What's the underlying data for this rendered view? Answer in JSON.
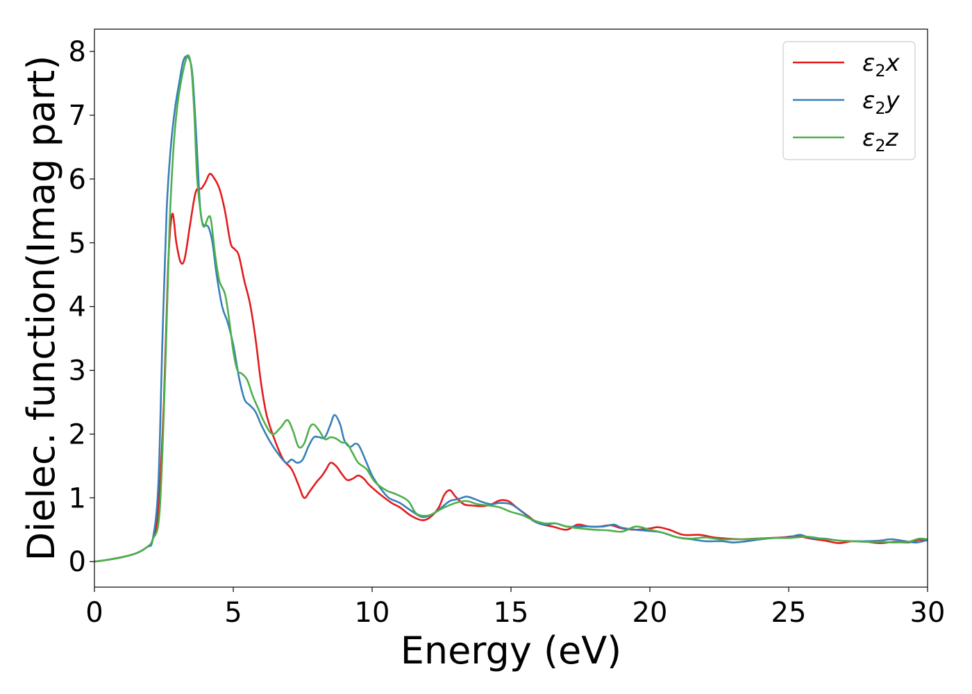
{
  "chart_data": {
    "type": "line",
    "xlabel": "Energy (eV)",
    "ylabel": "Dielec. function(Imag part)",
    "xlim": [
      0,
      30
    ],
    "ylim": [
      -0.4,
      8.35
    ],
    "xticks": [
      0,
      5,
      10,
      15,
      20,
      25,
      30
    ],
    "yticks": [
      0,
      1,
      2,
      3,
      4,
      5,
      6,
      7,
      8
    ],
    "grid": false,
    "legend_position": "top-right",
    "series": [
      {
        "name": "ε2x",
        "legend_symbol": "ε",
        "legend_sub": "2",
        "legend_suffix": "x",
        "color": "#e41a1c",
        "points": [
          [
            0,
            0
          ],
          [
            0.5,
            0.03
          ],
          [
            1,
            0.07
          ],
          [
            1.5,
            0.13
          ],
          [
            1.9,
            0.23
          ],
          [
            2.1,
            0.35
          ],
          [
            2.3,
            0.8
          ],
          [
            2.5,
            2.5
          ],
          [
            2.65,
            4.6
          ],
          [
            2.8,
            5.45
          ],
          [
            2.95,
            5.0
          ],
          [
            3.1,
            4.7
          ],
          [
            3.25,
            4.75
          ],
          [
            3.45,
            5.3
          ],
          [
            3.65,
            5.8
          ],
          [
            3.85,
            5.85
          ],
          [
            4.0,
            5.95
          ],
          [
            4.15,
            6.08
          ],
          [
            4.3,
            6.02
          ],
          [
            4.5,
            5.85
          ],
          [
            4.7,
            5.5
          ],
          [
            4.9,
            5.0
          ],
          [
            5.05,
            4.9
          ],
          [
            5.2,
            4.8
          ],
          [
            5.4,
            4.4
          ],
          [
            5.6,
            4.05
          ],
          [
            5.8,
            3.5
          ],
          [
            6.0,
            2.8
          ],
          [
            6.2,
            2.3
          ],
          [
            6.5,
            1.9
          ],
          [
            6.8,
            1.6
          ],
          [
            7.1,
            1.45
          ],
          [
            7.35,
            1.2
          ],
          [
            7.55,
            1.0
          ],
          [
            7.75,
            1.1
          ],
          [
            8.0,
            1.25
          ],
          [
            8.2,
            1.35
          ],
          [
            8.35,
            1.45
          ],
          [
            8.5,
            1.55
          ],
          [
            8.7,
            1.5
          ],
          [
            8.9,
            1.38
          ],
          [
            9.1,
            1.28
          ],
          [
            9.3,
            1.3
          ],
          [
            9.5,
            1.35
          ],
          [
            9.7,
            1.3
          ],
          [
            9.9,
            1.2
          ],
          [
            10.3,
            1.05
          ],
          [
            10.7,
            0.92
          ],
          [
            11.0,
            0.85
          ],
          [
            11.4,
            0.72
          ],
          [
            11.8,
            0.65
          ],
          [
            12.1,
            0.7
          ],
          [
            12.4,
            0.85
          ],
          [
            12.6,
            1.05
          ],
          [
            12.8,
            1.12
          ],
          [
            13.0,
            1.02
          ],
          [
            13.3,
            0.9
          ],
          [
            13.6,
            0.88
          ],
          [
            14.0,
            0.87
          ],
          [
            14.3,
            0.9
          ],
          [
            14.6,
            0.96
          ],
          [
            14.9,
            0.95
          ],
          [
            15.2,
            0.85
          ],
          [
            15.6,
            0.72
          ],
          [
            16.0,
            0.6
          ],
          [
            16.5,
            0.55
          ],
          [
            17.0,
            0.5
          ],
          [
            17.4,
            0.58
          ],
          [
            17.8,
            0.55
          ],
          [
            18.2,
            0.55
          ],
          [
            18.6,
            0.57
          ],
          [
            19.0,
            0.52
          ],
          [
            19.5,
            0.5
          ],
          [
            20.0,
            0.52
          ],
          [
            20.3,
            0.54
          ],
          [
            20.7,
            0.5
          ],
          [
            21.2,
            0.42
          ],
          [
            21.8,
            0.42
          ],
          [
            22.3,
            0.38
          ],
          [
            22.8,
            0.36
          ],
          [
            23.3,
            0.35
          ],
          [
            23.8,
            0.36
          ],
          [
            24.3,
            0.37
          ],
          [
            24.8,
            0.38
          ],
          [
            25.3,
            0.4
          ],
          [
            25.8,
            0.36
          ],
          [
            26.3,
            0.33
          ],
          [
            26.8,
            0.29
          ],
          [
            27.3,
            0.32
          ],
          [
            27.8,
            0.31
          ],
          [
            28.3,
            0.29
          ],
          [
            28.8,
            0.31
          ],
          [
            29.3,
            0.3
          ],
          [
            29.7,
            0.34
          ],
          [
            30,
            0.33
          ]
        ]
      },
      {
        "name": "ε2y",
        "legend_symbol": "ε",
        "legend_sub": "2",
        "legend_suffix": "y",
        "color": "#377eb8",
        "points": [
          [
            0,
            0
          ],
          [
            0.5,
            0.03
          ],
          [
            1,
            0.07
          ],
          [
            1.5,
            0.13
          ],
          [
            1.9,
            0.23
          ],
          [
            2.1,
            0.35
          ],
          [
            2.3,
            1.2
          ],
          [
            2.45,
            3.5
          ],
          [
            2.6,
            5.5
          ],
          [
            2.75,
            6.5
          ],
          [
            2.9,
            7.1
          ],
          [
            3.05,
            7.5
          ],
          [
            3.2,
            7.85
          ],
          [
            3.35,
            7.92
          ],
          [
            3.5,
            7.75
          ],
          [
            3.6,
            7.2
          ],
          [
            3.7,
            6.4
          ],
          [
            3.8,
            5.6
          ],
          [
            3.9,
            5.3
          ],
          [
            4.1,
            5.25
          ],
          [
            4.25,
            5.0
          ],
          [
            4.4,
            4.5
          ],
          [
            4.6,
            4.0
          ],
          [
            4.8,
            3.75
          ],
          [
            5.0,
            3.4
          ],
          [
            5.2,
            2.9
          ],
          [
            5.4,
            2.55
          ],
          [
            5.6,
            2.45
          ],
          [
            5.8,
            2.35
          ],
          [
            6.0,
            2.15
          ],
          [
            6.3,
            1.9
          ],
          [
            6.6,
            1.7
          ],
          [
            6.9,
            1.55
          ],
          [
            7.1,
            1.6
          ],
          [
            7.3,
            1.55
          ],
          [
            7.5,
            1.6
          ],
          [
            7.7,
            1.8
          ],
          [
            7.9,
            1.95
          ],
          [
            8.1,
            1.95
          ],
          [
            8.3,
            1.95
          ],
          [
            8.5,
            2.15
          ],
          [
            8.65,
            2.3
          ],
          [
            8.85,
            2.15
          ],
          [
            9.0,
            1.9
          ],
          [
            9.2,
            1.8
          ],
          [
            9.4,
            1.85
          ],
          [
            9.55,
            1.8
          ],
          [
            9.8,
            1.55
          ],
          [
            10.0,
            1.35
          ],
          [
            10.3,
            1.15
          ],
          [
            10.6,
            1.0
          ],
          [
            11.0,
            0.92
          ],
          [
            11.4,
            0.8
          ],
          [
            11.8,
            0.7
          ],
          [
            12.2,
            0.75
          ],
          [
            12.5,
            0.85
          ],
          [
            12.8,
            0.95
          ],
          [
            13.1,
            0.98
          ],
          [
            13.4,
            1.02
          ],
          [
            13.7,
            0.98
          ],
          [
            14.0,
            0.93
          ],
          [
            14.3,
            0.9
          ],
          [
            14.6,
            0.92
          ],
          [
            15.0,
            0.9
          ],
          [
            15.4,
            0.78
          ],
          [
            15.8,
            0.64
          ],
          [
            16.2,
            0.58
          ],
          [
            16.6,
            0.6
          ],
          [
            17.0,
            0.55
          ],
          [
            17.4,
            0.55
          ],
          [
            17.8,
            0.55
          ],
          [
            18.3,
            0.55
          ],
          [
            18.7,
            0.58
          ],
          [
            19.0,
            0.53
          ],
          [
            19.5,
            0.5
          ],
          [
            20.0,
            0.48
          ],
          [
            20.4,
            0.46
          ],
          [
            21.0,
            0.38
          ],
          [
            21.5,
            0.35
          ],
          [
            22.0,
            0.32
          ],
          [
            22.6,
            0.32
          ],
          [
            23.0,
            0.3
          ],
          [
            23.5,
            0.32
          ],
          [
            24.0,
            0.35
          ],
          [
            24.5,
            0.37
          ],
          [
            25.0,
            0.38
          ],
          [
            25.4,
            0.42
          ],
          [
            25.8,
            0.37
          ],
          [
            26.3,
            0.36
          ],
          [
            26.8,
            0.33
          ],
          [
            27.3,
            0.32
          ],
          [
            27.8,
            0.32
          ],
          [
            28.3,
            0.33
          ],
          [
            28.7,
            0.35
          ],
          [
            29.2,
            0.32
          ],
          [
            29.6,
            0.3
          ],
          [
            30,
            0.34
          ]
        ]
      },
      {
        "name": "ε2z",
        "legend_symbol": "ε",
        "legend_sub": "2",
        "legend_suffix": "z",
        "color": "#4daf4a",
        "points": [
          [
            0,
            0
          ],
          [
            0.5,
            0.03
          ],
          [
            1,
            0.07
          ],
          [
            1.5,
            0.13
          ],
          [
            1.9,
            0.23
          ],
          [
            2.1,
            0.35
          ],
          [
            2.35,
            0.8
          ],
          [
            2.55,
            3.0
          ],
          [
            2.7,
            5.2
          ],
          [
            2.85,
            6.5
          ],
          [
            3.0,
            7.2
          ],
          [
            3.15,
            7.6
          ],
          [
            3.3,
            7.88
          ],
          [
            3.4,
            7.93
          ],
          [
            3.5,
            7.7
          ],
          [
            3.6,
            7.0
          ],
          [
            3.7,
            6.0
          ],
          [
            3.85,
            5.4
          ],
          [
            3.95,
            5.25
          ],
          [
            4.1,
            5.4
          ],
          [
            4.2,
            5.35
          ],
          [
            4.35,
            4.8
          ],
          [
            4.5,
            4.4
          ],
          [
            4.7,
            4.2
          ],
          [
            4.85,
            3.8
          ],
          [
            5.0,
            3.3
          ],
          [
            5.15,
            3.0
          ],
          [
            5.3,
            2.95
          ],
          [
            5.5,
            2.85
          ],
          [
            5.7,
            2.6
          ],
          [
            5.9,
            2.4
          ],
          [
            6.1,
            2.2
          ],
          [
            6.4,
            2.0
          ],
          [
            6.7,
            2.1
          ],
          [
            6.95,
            2.22
          ],
          [
            7.15,
            2.05
          ],
          [
            7.35,
            1.8
          ],
          [
            7.55,
            1.85
          ],
          [
            7.75,
            2.1
          ],
          [
            7.9,
            2.15
          ],
          [
            8.1,
            2.05
          ],
          [
            8.3,
            1.92
          ],
          [
            8.5,
            1.95
          ],
          [
            8.7,
            1.93
          ],
          [
            8.9,
            1.87
          ],
          [
            9.1,
            1.85
          ],
          [
            9.3,
            1.7
          ],
          [
            9.5,
            1.55
          ],
          [
            9.8,
            1.45
          ],
          [
            10.1,
            1.25
          ],
          [
            10.5,
            1.12
          ],
          [
            10.9,
            1.05
          ],
          [
            11.3,
            0.95
          ],
          [
            11.6,
            0.75
          ],
          [
            12.0,
            0.72
          ],
          [
            12.3,
            0.78
          ],
          [
            12.6,
            0.85
          ],
          [
            13.0,
            0.92
          ],
          [
            13.4,
            0.95
          ],
          [
            13.8,
            0.9
          ],
          [
            14.2,
            0.88
          ],
          [
            14.6,
            0.85
          ],
          [
            15.0,
            0.78
          ],
          [
            15.4,
            0.73
          ],
          [
            15.8,
            0.65
          ],
          [
            16.2,
            0.6
          ],
          [
            16.6,
            0.6
          ],
          [
            17.0,
            0.55
          ],
          [
            17.5,
            0.52
          ],
          [
            18.0,
            0.5
          ],
          [
            18.5,
            0.49
          ],
          [
            19.0,
            0.47
          ],
          [
            19.5,
            0.55
          ],
          [
            20.0,
            0.5
          ],
          [
            20.5,
            0.45
          ],
          [
            21.0,
            0.38
          ],
          [
            21.5,
            0.36
          ],
          [
            22.0,
            0.38
          ],
          [
            22.5,
            0.35
          ],
          [
            23.0,
            0.35
          ],
          [
            23.5,
            0.35
          ],
          [
            24.0,
            0.36
          ],
          [
            24.5,
            0.37
          ],
          [
            25.0,
            0.37
          ],
          [
            25.3,
            0.38
          ],
          [
            25.7,
            0.39
          ],
          [
            26.2,
            0.36
          ],
          [
            26.8,
            0.33
          ],
          [
            27.3,
            0.32
          ],
          [
            27.8,
            0.31
          ],
          [
            28.3,
            0.31
          ],
          [
            28.8,
            0.3
          ],
          [
            29.3,
            0.31
          ],
          [
            29.7,
            0.36
          ],
          [
            30,
            0.35
          ]
        ]
      }
    ]
  }
}
